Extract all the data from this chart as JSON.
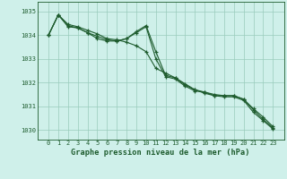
{
  "title": "Graphe pression niveau de la mer (hPa)",
  "background_color": "#cff0ea",
  "grid_color": "#99ccbb",
  "line_color": "#1e5c2e",
  "x_ticks": [
    0,
    1,
    2,
    3,
    4,
    5,
    6,
    7,
    8,
    9,
    10,
    11,
    12,
    13,
    14,
    15,
    16,
    17,
    18,
    19,
    20,
    21,
    22,
    23
  ],
  "ylim": [
    1029.6,
    1035.4
  ],
  "yticks": [
    1030,
    1031,
    1032,
    1033,
    1034,
    1035
  ],
  "series": [
    [
      1034.0,
      1034.85,
      1034.45,
      1034.35,
      1034.2,
      1034.05,
      1033.85,
      1033.8,
      1033.7,
      1033.55,
      1033.3,
      1032.6,
      1032.4,
      1032.2,
      1031.95,
      1031.7,
      1031.6,
      1031.5,
      1031.45,
      1031.45,
      1031.3,
      1030.9,
      1030.55,
      1030.15
    ],
    [
      1034.0,
      1034.85,
      1034.4,
      1034.3,
      1034.1,
      1033.95,
      1033.8,
      1033.75,
      1033.85,
      1034.1,
      1034.35,
      1033.0,
      1032.25,
      1032.15,
      1031.85,
      1031.65,
      1031.6,
      1031.45,
      1031.45,
      1031.45,
      1031.3,
      1030.85,
      1030.45,
      1030.1
    ],
    [
      1034.0,
      1034.85,
      1034.35,
      1034.3,
      1034.1,
      1033.85,
      1033.75,
      1033.75,
      1033.85,
      1034.15,
      1034.4,
      1033.3,
      1032.3,
      1032.2,
      1031.9,
      1031.7,
      1031.55,
      1031.45,
      1031.4,
      1031.4,
      1031.25,
      1030.75,
      1030.4,
      1030.05
    ]
  ]
}
